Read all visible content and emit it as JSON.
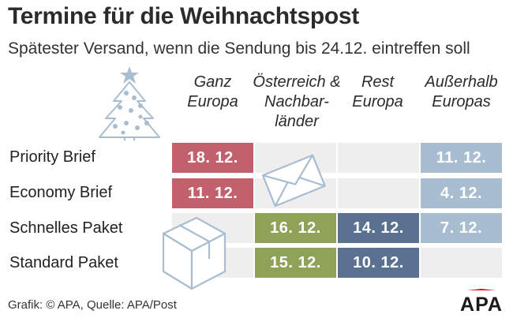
{
  "header": {
    "title": "Termine für die Weihnachtspost",
    "subtitle": "Spätester Versand, wenn die Sendung bis 24.12. eintreffen soll"
  },
  "columns": [
    {
      "line1": "Ganz",
      "line2": "Europa",
      "line3": ""
    },
    {
      "line1": "Österreich &",
      "line2": "Nachbar-",
      "line3": "länder"
    },
    {
      "line1": "Rest",
      "line2": "Europa",
      "line3": ""
    },
    {
      "line1": "Außerhalb",
      "line2": "Europas",
      "line3": ""
    }
  ],
  "rows": [
    {
      "label": "Priority Brief",
      "cells": [
        "18. 12.",
        "",
        "",
        "11. 12."
      ]
    },
    {
      "label": "Economy Brief",
      "cells": [
        "11. 12.",
        "",
        "",
        "4. 12."
      ]
    },
    {
      "label": "Schnelles Paket",
      "cells": [
        "",
        "16. 12.",
        "14. 12.",
        "7. 12."
      ]
    },
    {
      "label": "Standard Paket",
      "cells": [
        "",
        "15. 12.",
        "10. 12.",
        ""
      ]
    }
  ],
  "colors": {
    "ganz_europa": "#c2606c",
    "oesterreich": "#8fa258",
    "rest_europa": "#5a7190",
    "ausserhalb": "#a8bdd0",
    "empty_cell": "#eeeeee",
    "logo_red": "#e3001b"
  },
  "icons": {
    "tree": "christmas-tree-icon",
    "envelope": "envelope-icon",
    "parcel": "parcel-icon"
  },
  "footer": {
    "credit": "Grafik: © APA, Quelle: APA/Post",
    "logo_text": "APA"
  }
}
